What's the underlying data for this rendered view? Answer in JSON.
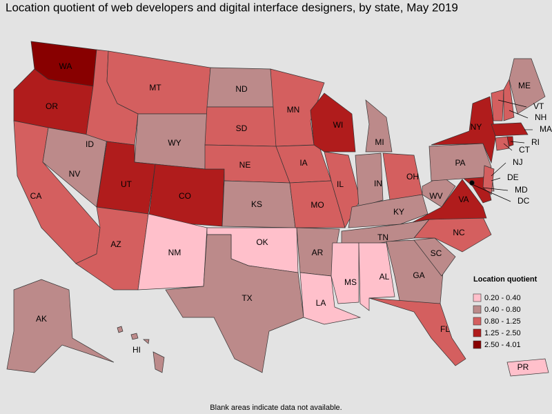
{
  "title": "Location quotient of web developers and digital interface designers, by state, May 2019",
  "note": "Blank areas indicate data not available.",
  "legend": {
    "title": "Location quotient",
    "items": [
      {
        "label": "0.20 - 0.40",
        "color": "#ffc0cb"
      },
      {
        "label": "0.40 - 0.80",
        "color": "#bc8a8a"
      },
      {
        "label": "0.80 - 1.25",
        "color": "#d45f5f"
      },
      {
        "label": "1.25 - 2.50",
        "color": "#b01c1c"
      },
      {
        "label": "2.50 - 4.01",
        "color": "#880000"
      }
    ]
  },
  "states": [
    {
      "label": "WA",
      "bin": 4
    },
    {
      "label": "OR",
      "bin": 3
    },
    {
      "label": "CA",
      "bin": 2
    },
    {
      "label": "NV",
      "bin": 1
    },
    {
      "label": "ID",
      "bin": 2
    },
    {
      "label": "MT",
      "bin": 2
    },
    {
      "label": "WY",
      "bin": 1
    },
    {
      "label": "UT",
      "bin": 3
    },
    {
      "label": "CO",
      "bin": 3
    },
    {
      "label": "AZ",
      "bin": 2
    },
    {
      "label": "NM",
      "bin": 0
    },
    {
      "label": "ND",
      "bin": 1
    },
    {
      "label": "SD",
      "bin": 2
    },
    {
      "label": "NE",
      "bin": 2
    },
    {
      "label": "KS",
      "bin": 1
    },
    {
      "label": "OK",
      "bin": 0
    },
    {
      "label": "TX",
      "bin": 1
    },
    {
      "label": "MN",
      "bin": 2
    },
    {
      "label": "IA",
      "bin": 2
    },
    {
      "label": "MO",
      "bin": 2
    },
    {
      "label": "AR",
      "bin": 1
    },
    {
      "label": "LA",
      "bin": 0
    },
    {
      "label": "WI",
      "bin": 3
    },
    {
      "label": "IL",
      "bin": 2
    },
    {
      "label": "MI",
      "bin": 1
    },
    {
      "label": "IN",
      "bin": 1
    },
    {
      "label": "OH",
      "bin": 2
    },
    {
      "label": "KY",
      "bin": 1
    },
    {
      "label": "TN",
      "bin": 1
    },
    {
      "label": "MS",
      "bin": 0
    },
    {
      "label": "AL",
      "bin": 0
    },
    {
      "label": "GA",
      "bin": 1
    },
    {
      "label": "FL",
      "bin": 2
    },
    {
      "label": "SC",
      "bin": 1
    },
    {
      "label": "NC",
      "bin": 2
    },
    {
      "label": "VA",
      "bin": 3
    },
    {
      "label": "WV",
      "bin": 1
    },
    {
      "label": "MD",
      "bin": 3
    },
    {
      "label": "DE",
      "bin": 1
    },
    {
      "label": "DC",
      "bin": 4
    },
    {
      "label": "PA",
      "bin": 1
    },
    {
      "label": "NY",
      "bin": 3
    },
    {
      "label": "NJ",
      "bin": 2
    },
    {
      "label": "CT",
      "bin": 2
    },
    {
      "label": "RI",
      "bin": 3
    },
    {
      "label": "MA",
      "bin": 3
    },
    {
      "label": "VT",
      "bin": 2
    },
    {
      "label": "NH",
      "bin": 2
    },
    {
      "label": "ME",
      "bin": 1
    },
    {
      "label": "AK",
      "bin": 1
    },
    {
      "label": "HI",
      "bin": 1
    },
    {
      "label": "PR",
      "bin": 0
    }
  ]
}
